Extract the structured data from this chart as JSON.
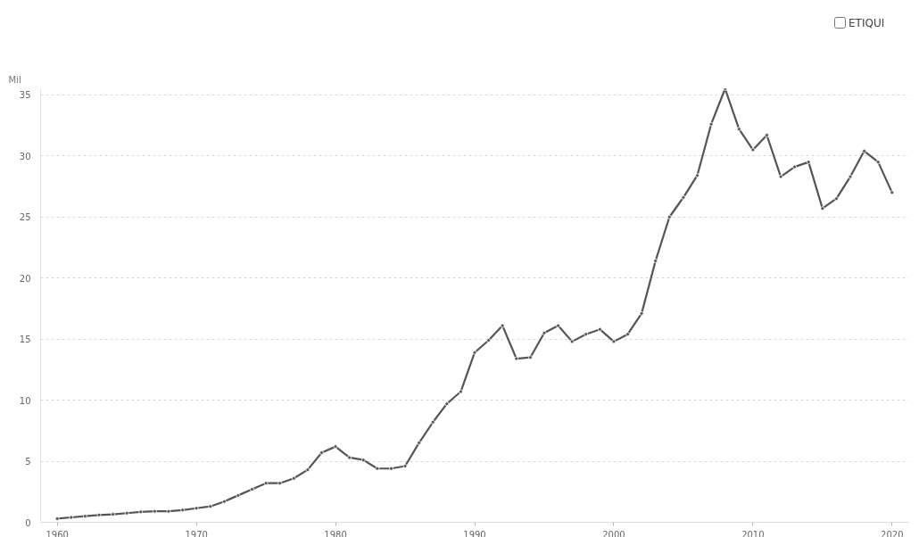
{
  "chart_data": {
    "type": "line",
    "ylabel": "Mil",
    "x": [
      1960,
      1961,
      1962,
      1963,
      1964,
      1965,
      1966,
      1967,
      1968,
      1969,
      1970,
      1971,
      1972,
      1973,
      1974,
      1975,
      1976,
      1977,
      1978,
      1979,
      1980,
      1981,
      1982,
      1983,
      1984,
      1985,
      1986,
      1987,
      1988,
      1989,
      1990,
      1991,
      1992,
      1993,
      1994,
      1995,
      1996,
      1997,
      1998,
      1999,
      2000,
      2001,
      2002,
      2003,
      2004,
      2005,
      2006,
      2007,
      2008,
      2009,
      2010,
      2011,
      2012,
      2013,
      2014,
      2015,
      2016,
      2017,
      2018,
      2019,
      2020
    ],
    "series": [
      {
        "color": "#555555",
        "values": [
          0.3,
          0.4,
          0.5,
          0.6,
          0.65,
          0.75,
          0.85,
          0.9,
          0.9,
          1.0,
          1.15,
          1.3,
          1.7,
          2.2,
          2.7,
          3.2,
          3.2,
          3.6,
          4.3,
          5.7,
          6.2,
          5.3,
          5.1,
          4.4,
          4.4,
          4.6,
          6.5,
          8.2,
          9.7,
          10.7,
          13.9,
          14.9,
          16.1,
          13.4,
          13.5,
          15.5,
          16.1,
          14.8,
          15.4,
          15.8,
          14.8,
          15.4,
          17.1,
          21.4,
          25.0,
          26.6,
          28.4,
          32.6,
          35.5,
          32.2,
          30.5,
          31.7,
          28.3,
          29.1,
          29.5,
          25.7,
          26.5,
          28.3,
          30.4,
          29.5,
          27.0
        ]
      }
    ],
    "xlim": [
      1958.8,
      2021.2
    ],
    "xticks": [
      1960,
      1970,
      1980,
      1990,
      2000,
      2010,
      2020
    ],
    "ylim": [
      0,
      35.5
    ],
    "yticks": [
      0,
      5,
      10,
      15,
      20,
      25,
      30,
      35
    ],
    "grid": "y",
    "marker": "circle",
    "line_style": "solid",
    "annotations": [
      "ETIQUI"
    ]
  }
}
